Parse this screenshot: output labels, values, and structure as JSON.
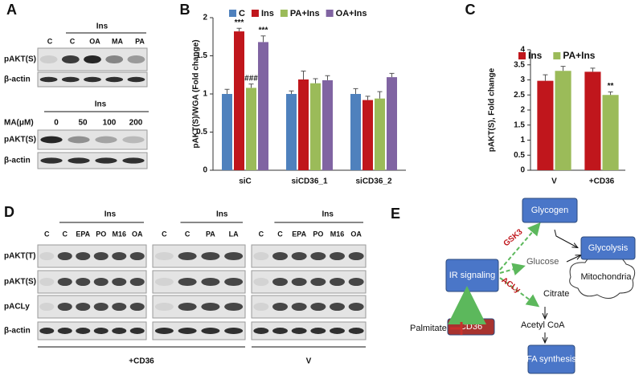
{
  "chart_data": [
    {
      "type": "bar",
      "letter": "B",
      "ylabel": "pAKT(S)/WGA (Fold change)",
      "categories": [
        "siC",
        "siCD36_1",
        "siCD36_2"
      ],
      "series": [
        {
          "name": "C",
          "color": "#4f81bd",
          "values": [
            1.0,
            1.0,
            1.0
          ],
          "errors": [
            0.06,
            0.04,
            0.07
          ],
          "significance": [
            null,
            null,
            null
          ]
        },
        {
          "name": "Ins",
          "color": "#c0161c",
          "values": [
            1.82,
            1.19,
            0.92
          ],
          "errors": [
            0.04,
            0.11,
            0.05
          ],
          "significance": [
            "***",
            null,
            null
          ]
        },
        {
          "name": "PA+Ins",
          "color": "#9bbb59",
          "values": [
            1.08,
            1.14,
            0.94
          ],
          "errors": [
            0.05,
            0.06,
            0.09
          ],
          "significance": [
            "###",
            null,
            null
          ]
        },
        {
          "name": "OA+Ins",
          "color": "#8064a2",
          "values": [
            1.68,
            1.18,
            1.22
          ],
          "errors": [
            0.08,
            0.06,
            0.05
          ],
          "significance": [
            "***",
            null,
            null
          ]
        }
      ],
      "ylim": [
        0,
        2
      ],
      "yticks": [
        0,
        0.5,
        1,
        1.5,
        2
      ],
      "legend": "top"
    },
    {
      "type": "bar",
      "letter": "C",
      "ylabel": "pAKT(S), Fold change",
      "categories": [
        "V",
        "+CD36"
      ],
      "series": [
        {
          "name": "Ins",
          "color": "#c0161c",
          "values": [
            2.97,
            3.27
          ],
          "errors": [
            0.2,
            0.12
          ],
          "significance": [
            null,
            null
          ]
        },
        {
          "name": "PA+Ins",
          "color": "#9bbb59",
          "values": [
            3.3,
            2.5
          ],
          "errors": [
            0.15,
            0.1
          ],
          "significance": [
            null,
            "**"
          ]
        }
      ],
      "ylim": [
        0,
        4
      ],
      "yticks": [
        0,
        0.5,
        1,
        1.5,
        2,
        2.5,
        3,
        3.5,
        4
      ],
      "legend": "top"
    }
  ],
  "panel_a": {
    "letter": "A",
    "top": {
      "ins": "Ins",
      "lanes": [
        "C",
        "C",
        "OA",
        "MA",
        "PA"
      ],
      "rows": [
        "pAKT(S)",
        "β-actin"
      ]
    },
    "bottom": {
      "ins": "Ins",
      "dose_label": "MA(μM)",
      "lanes": [
        "0",
        "50",
        "100",
        "200"
      ],
      "rows": [
        "pAKT(S)",
        "β-actin"
      ]
    }
  },
  "panel_d": {
    "letter": "D",
    "rows": [
      "pAKT(T)",
      "pAKT(S)",
      "pACLy",
      "β-actin"
    ],
    "groups": [
      {
        "ins": "Ins",
        "lanes": [
          "C",
          "C",
          "EPA",
          "PO",
          "M16",
          "OA"
        ]
      },
      {
        "ins": "Ins",
        "lanes": [
          "C",
          "C",
          "PA",
          "LA"
        ]
      },
      {
        "ins": "Ins",
        "lanes": [
          "C",
          "C",
          "EPA",
          "PO",
          "M16",
          "OA"
        ]
      }
    ],
    "footers": [
      "+CD36",
      "V"
    ]
  },
  "panel_e": {
    "letter": "E",
    "nodes": {
      "glycogen": "Glycogen",
      "glycolysis": "Glycolysis",
      "ir": "IR signaling",
      "glucose": "Glucose",
      "mito": "Mitochondria",
      "citrate": "Citrate",
      "palmitate": "Palmitate",
      "cd36": "CD36",
      "acetyl": "Acetyl CoA",
      "fa": "FA synthesis"
    },
    "edges": {
      "gsk3": "GSK3",
      "acly": "ACLy"
    }
  }
}
